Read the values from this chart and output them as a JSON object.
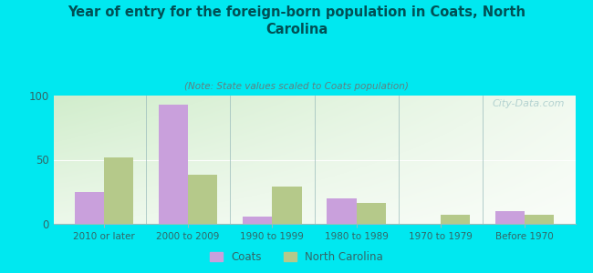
{
  "title": "Year of entry for the foreign-born population in Coats, North\nCarolina",
  "subtitle": "(Note: State values scaled to Coats population)",
  "categories": [
    "2010 or later",
    "2000 to 2009",
    "1990 to 1999",
    "1980 to 1989",
    "1970 to 1979",
    "Before 1970"
  ],
  "coats_values": [
    25,
    93,
    6,
    20,
    0,
    10
  ],
  "nc_values": [
    52,
    38,
    29,
    16,
    7,
    7
  ],
  "coats_color": "#c9a0dc",
  "nc_color": "#b5c98a",
  "background_outer": "#00e8f0",
  "ylim": [
    0,
    100
  ],
  "yticks": [
    0,
    50,
    100
  ],
  "bar_width": 0.35,
  "watermark": "City-Data.com",
  "title_color": "#005055",
  "subtitle_color": "#608080"
}
